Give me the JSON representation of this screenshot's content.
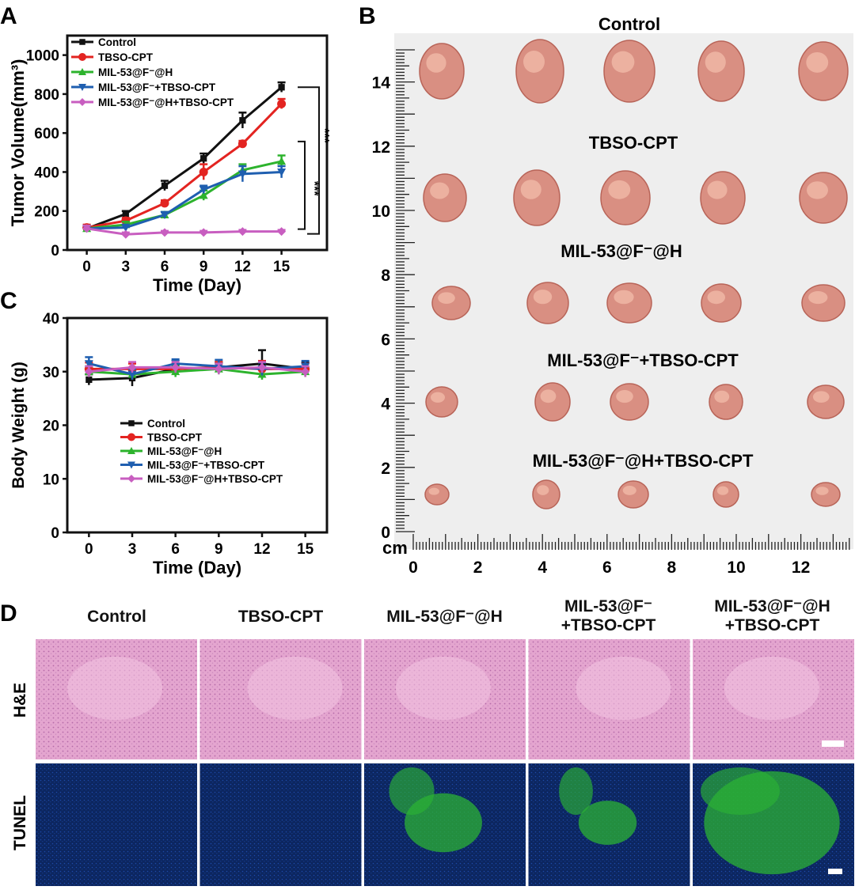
{
  "panels": {
    "a": "A",
    "b": "B",
    "c": "C",
    "d": "D"
  },
  "legend": [
    "Control",
    "TBSO-CPT",
    "MIL-53@F⁻@H",
    "MIL-53@F⁻+TBSO-CPT",
    "MIL-53@F⁻@H+TBSO-CPT"
  ],
  "significance": [
    "***",
    "***"
  ],
  "colors": {
    "control": "#111111",
    "tbso": "#e32421",
    "mil_h": "#2db32d",
    "mil_tbso": "#1f5fb0",
    "mil_h_tbso": "#c85ec0",
    "he_stain": "#e7a9d2",
    "tunel_blue": "#0d2a66",
    "tunel_green": "#2bb234"
  },
  "photo": {
    "group_labels": [
      "Control",
      "TBSO-CPT",
      "MIL-53@F⁻@H",
      "MIL-53@F⁻+TBSO-CPT",
      "MIL-53@F⁻@H+TBSO-CPT"
    ],
    "ruler_unit": "cm",
    "y_ticks": [
      "0",
      "2",
      "4",
      "6",
      "8",
      "10",
      "12",
      "14"
    ],
    "x_ticks": [
      "0",
      "2",
      "4",
      "6",
      "8",
      "10",
      "12"
    ]
  },
  "histology": {
    "columns": [
      {
        "line1": "Control",
        "line2": ""
      },
      {
        "line1": "TBSO-CPT",
        "line2": ""
      },
      {
        "line1": "MIL-53@F⁻@H",
        "line2": ""
      },
      {
        "line1": "MIL-53@F⁻",
        "line2": "+TBSO-CPT"
      },
      {
        "line1": "MIL-53@F⁻@H",
        "line2": "+TBSO-CPT"
      }
    ],
    "rows": [
      "H&E",
      "TUNEL"
    ],
    "tunel_green_fraction": [
      0.0,
      0.0,
      0.4,
      0.3,
      0.7
    ]
  },
  "chart_data": [
    {
      "type": "line",
      "panel": "A",
      "xlabel": "Time (Day)",
      "ylabel": "Tumor Volume(mm³)",
      "x": [
        0,
        3,
        6,
        9,
        12,
        15
      ],
      "xlim": [
        -1.5,
        18.5
      ],
      "ylim": [
        0,
        1100
      ],
      "xticks": [
        0,
        3,
        6,
        9,
        12,
        15
      ],
      "yticks": [
        0,
        200,
        400,
        600,
        800,
        1000
      ],
      "legend_position": "top-left",
      "series": [
        {
          "name": "Control",
          "values": [
            110,
            185,
            330,
            470,
            665,
            835
          ],
          "errors": [
            15,
            15,
            25,
            25,
            40,
            25
          ]
        },
        {
          "name": "TBSO-CPT",
          "values": [
            115,
            150,
            240,
            400,
            545,
            750
          ],
          "errors": [
            15,
            15,
            15,
            40,
            15,
            25
          ]
        },
        {
          "name": "MIL-53@F⁻@H",
          "values": [
            110,
            130,
            180,
            280,
            410,
            455
          ],
          "errors": [
            15,
            15,
            15,
            25,
            30,
            30
          ]
        },
        {
          "name": "MIL-53@F⁻+TBSO-CPT",
          "values": [
            110,
            115,
            180,
            310,
            390,
            400
          ],
          "errors": [
            15,
            15,
            15,
            20,
            40,
            30
          ]
        },
        {
          "name": "MIL-53@F⁻@H+TBSO-CPT",
          "values": [
            110,
            80,
            90,
            90,
            95,
            95
          ],
          "errors": [
            15,
            10,
            8,
            8,
            8,
            8
          ]
        }
      ]
    },
    {
      "type": "line",
      "panel": "C",
      "xlabel": "Time (Day)",
      "ylabel": "Body Weight (g)",
      "x": [
        0,
        3,
        6,
        9,
        12,
        15
      ],
      "xlim": [
        -1.5,
        16.5
      ],
      "ylim": [
        0,
        40
      ],
      "xticks": [
        0,
        3,
        6,
        9,
        12,
        15
      ],
      "yticks": [
        0,
        10,
        20,
        30,
        40
      ],
      "legend_position": "lower-center",
      "series": [
        {
          "name": "Control",
          "values": [
            28.5,
            28.8,
            30.5,
            30.8,
            31.5,
            30.5
          ],
          "errors": [
            1.0,
            1.5,
            0.8,
            1.0,
            2.5,
            1.2
          ]
        },
        {
          "name": "TBSO-CPT",
          "values": [
            30.5,
            30.5,
            30.5,
            30.8,
            30.5,
            30.5
          ],
          "errors": [
            1.2,
            1.0,
            1.0,
            1.0,
            1.5,
            1.0
          ]
        },
        {
          "name": "MIL-53@F⁻@H",
          "values": [
            30.0,
            29.5,
            30.0,
            30.5,
            29.5,
            30.0
          ],
          "errors": [
            1.0,
            1.0,
            1.0,
            1.0,
            1.0,
            1.0
          ]
        },
        {
          "name": "MIL-53@F⁻+TBSO-CPT",
          "values": [
            31.5,
            29.5,
            31.5,
            31.0,
            30.5,
            31.0
          ],
          "errors": [
            1.2,
            1.0,
            0.8,
            1.2,
            1.2,
            1.0
          ]
        },
        {
          "name": "MIL-53@F⁻@H+TBSO-CPT",
          "values": [
            30.0,
            30.8,
            30.8,
            30.5,
            30.8,
            30.0
          ],
          "errors": [
            1.0,
            1.0,
            1.0,
            1.0,
            1.0,
            1.0
          ]
        }
      ]
    }
  ]
}
